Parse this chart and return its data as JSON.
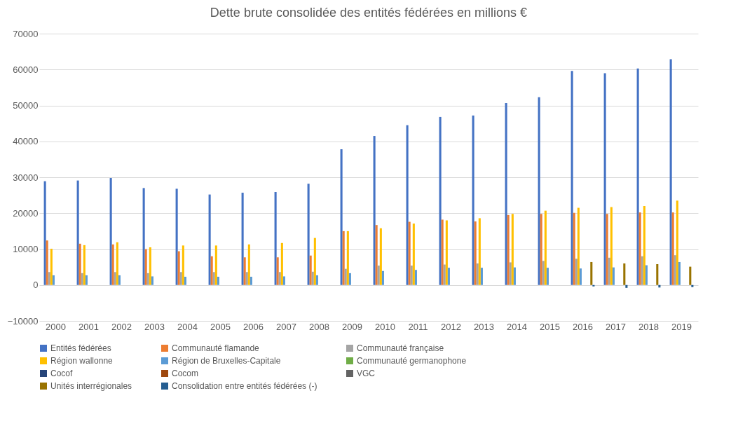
{
  "chart_data": {
    "type": "bar",
    "title": "Dette brute consolidée des entités fédérées en millions €",
    "categories": [
      "2000",
      "2001",
      "2002",
      "2003",
      "2004",
      "2005",
      "2006",
      "2007",
      "2008",
      "2009",
      "2010",
      "2011",
      "2012",
      "2013",
      "2014",
      "2015",
      "2016",
      "2017",
      "2018",
      "2019"
    ],
    "series": [
      {
        "name": "Entités fédérées",
        "color": "#4472c4",
        "values": [
          28900,
          29100,
          29800,
          27000,
          26800,
          25200,
          25700,
          25900,
          28200,
          37800,
          41500,
          44500,
          46800,
          47200,
          50700,
          52300,
          59600,
          59000,
          60300,
          62900
        ]
      },
      {
        "name": "Communauté flamande",
        "color": "#ed7d31",
        "values": [
          12400,
          11500,
          11300,
          10000,
          9400,
          8000,
          7700,
          7700,
          8200,
          15000,
          16700,
          17600,
          18200,
          17700,
          19500,
          19800,
          20100,
          19800,
          20200,
          20200
        ]
      },
      {
        "name": "Communauté française",
        "color": "#a5a5a5",
        "values": [
          3600,
          3300,
          3600,
          3300,
          3600,
          3600,
          3600,
          3600,
          3700,
          4500,
          5400,
          5400,
          5700,
          6000,
          6300,
          6700,
          7300,
          7600,
          8000,
          8300
        ]
      },
      {
        "name": "Région wallonne",
        "color": "#ffc000",
        "values": [
          10100,
          11100,
          11900,
          10500,
          11000,
          11000,
          11300,
          11700,
          13100,
          15000,
          15800,
          17100,
          18000,
          18600,
          19800,
          20700,
          21500,
          21700,
          22000,
          23500
        ]
      },
      {
        "name": "Région de Bruxelles-Capitale",
        "color": "#5b9bd5",
        "values": [
          2700,
          2700,
          2700,
          2400,
          2300,
          2300,
          2300,
          2400,
          2700,
          3300,
          3900,
          4200,
          4800,
          4800,
          4900,
          4800,
          4600,
          4900,
          5500,
          6400
        ]
      },
      {
        "name": "Communauté germanophone",
        "color": "#70ad47",
        "values": [
          null,
          null,
          null,
          null,
          null,
          null,
          null,
          null,
          null,
          null,
          null,
          null,
          null,
          null,
          null,
          null,
          null,
          null,
          null,
          null
        ]
      },
      {
        "name": "Cocof",
        "color": "#264478",
        "values": [
          null,
          null,
          null,
          null,
          null,
          null,
          null,
          null,
          null,
          null,
          null,
          null,
          null,
          null,
          null,
          null,
          null,
          null,
          null,
          null
        ]
      },
      {
        "name": "Cocom",
        "color": "#9e480e",
        "values": [
          null,
          null,
          null,
          null,
          null,
          null,
          null,
          null,
          null,
          null,
          null,
          null,
          null,
          null,
          null,
          null,
          null,
          null,
          null,
          null
        ]
      },
      {
        "name": "VGC",
        "color": "#636363",
        "values": [
          null,
          null,
          null,
          null,
          null,
          null,
          null,
          null,
          null,
          null,
          null,
          null,
          null,
          null,
          null,
          null,
          null,
          null,
          null,
          null
        ]
      },
      {
        "name": "Unités interrégionales",
        "color": "#997300",
        "values": [
          null,
          null,
          null,
          null,
          null,
          null,
          null,
          null,
          null,
          null,
          null,
          null,
          null,
          null,
          null,
          null,
          6400,
          6000,
          5800,
          5100
        ]
      },
      {
        "name": "Consolidation entre entités fédérées (-)",
        "color": "#255e91",
        "values": [
          null,
          null,
          null,
          null,
          null,
          null,
          null,
          null,
          null,
          null,
          null,
          null,
          null,
          null,
          null,
          null,
          -400,
          -800,
          -700,
          -600
        ]
      }
    ],
    "ylim": [
      -10000,
      70000
    ],
    "yticks": [
      -10000,
      0,
      10000,
      20000,
      30000,
      40000,
      50000,
      60000,
      70000
    ],
    "grid": "y",
    "legend": "bottom"
  }
}
